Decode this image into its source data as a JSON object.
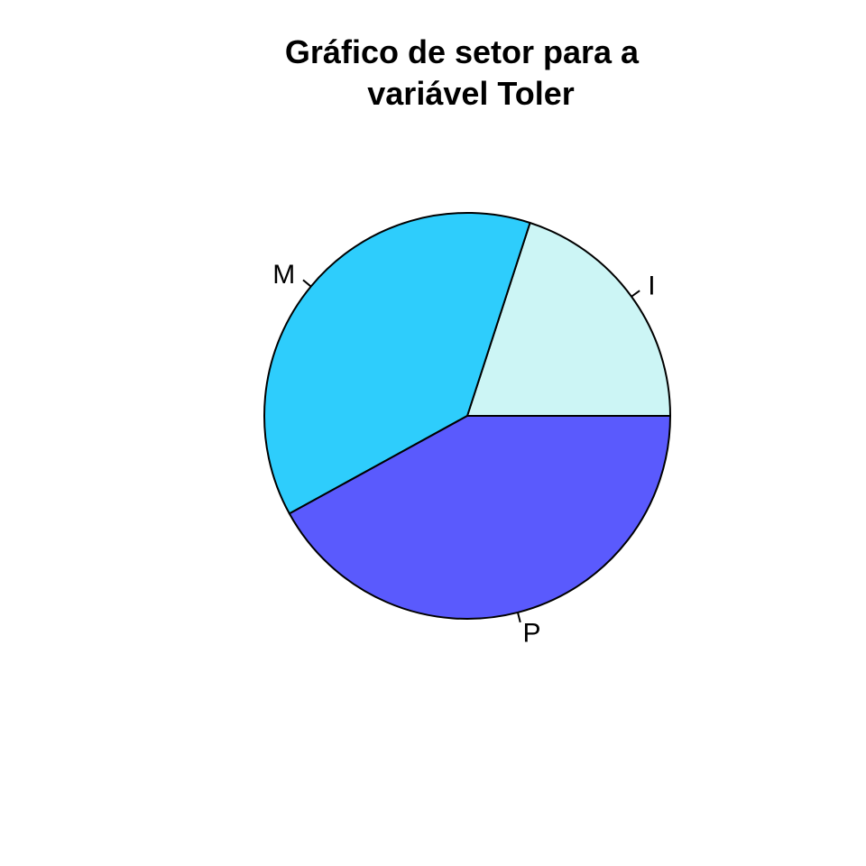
{
  "chart_data": {
    "type": "pie",
    "title_lines": [
      "Gráfico de setor para a",
      "variável Toler"
    ],
    "categories": [
      "I",
      "M",
      "P"
    ],
    "values": [
      0.2,
      0.38,
      0.42
    ],
    "colors": [
      "#CCF5F5",
      "#2ECDFC",
      "#5A5AFD"
    ],
    "start_angle_deg": 0,
    "direction": "counterclockwise",
    "legend": "none"
  }
}
